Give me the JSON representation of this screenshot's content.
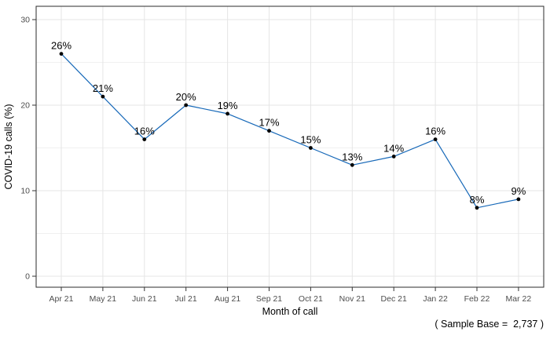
{
  "figure": {
    "ylabel": "COVID-19 calls (%)",
    "xlabel": "Month of call",
    "caption": "( Sample Base =  2,737 )"
  },
  "chart_data": {
    "type": "line",
    "title": "",
    "categories": [
      "Apr 21",
      "May 21",
      "Jun 21",
      "Jul 21",
      "Aug 21",
      "Sep 21",
      "Oct 21",
      "Nov 21",
      "Dec 21",
      "Jan 22",
      "Feb 22",
      "Mar 22"
    ],
    "series": [
      {
        "name": "COVID-19 calls (%)",
        "values": [
          26,
          21,
          16,
          20,
          19,
          17,
          15,
          13,
          14,
          16,
          8,
          9
        ],
        "labels": [
          "26%",
          "21%",
          "16%",
          "20%",
          "19%",
          "17%",
          "15%",
          "13%",
          "14%",
          "16%",
          "8%",
          "9%"
        ]
      }
    ],
    "xlabel": "Month of call",
    "ylabel": "COVID-19 calls (%)",
    "ylim": [
      0,
      30
    ],
    "yticks": [
      0,
      10,
      20,
      30
    ],
    "yticks_minor": [
      5,
      15,
      25
    ],
    "grid": "major-and-minor",
    "legend": "none",
    "caption": "( Sample Base =  2,737 )",
    "colors": {
      "line": "#1668b8",
      "point": "#000000",
      "label_text": "#000000",
      "grid_major": "#e5e5e5",
      "grid_minor": "#f0f0f0",
      "panel_border": "#2b2b2b",
      "tick_mark": "#333333",
      "tick_text": "#4d4d4d",
      "background": "#ffffff"
    }
  }
}
